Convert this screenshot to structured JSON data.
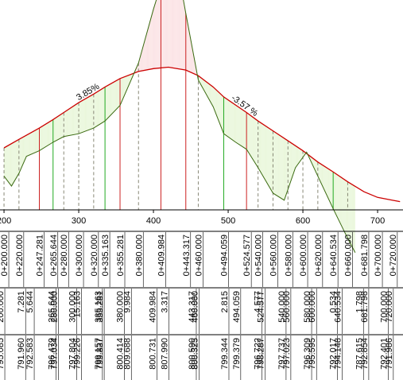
{
  "chart_data": {
    "type": "area",
    "title": "",
    "xlabel": "",
    "ylabel": "",
    "x_ticks": [
      200,
      300,
      400,
      500,
      600,
      700
    ],
    "xlim": [
      200,
      730
    ],
    "ground_profile": [
      [
        200,
        797.0
      ],
      [
        210,
        796.3
      ],
      [
        220,
        797.2
      ],
      [
        230,
        798.4
      ],
      [
        247.281,
        798.8
      ],
      [
        265.644,
        799.4
      ],
      [
        280,
        799.8
      ],
      [
        300,
        800.0
      ],
      [
        320,
        800.4
      ],
      [
        335.163,
        800.9
      ],
      [
        355.281,
        802.0
      ],
      [
        380,
        805.0
      ],
      [
        400,
        808.8
      ],
      [
        409.984,
        810.5
      ],
      [
        420,
        812.5
      ],
      [
        430,
        812.4
      ],
      [
        443.317,
        808.5
      ],
      [
        460,
        803.8
      ],
      [
        480,
        801.9
      ],
      [
        494.059,
        800.0
      ],
      [
        510,
        799.4
      ],
      [
        524.577,
        798.9
      ],
      [
        540,
        797.6
      ],
      [
        560,
        795.8
      ],
      [
        575,
        795.3
      ],
      [
        590,
        797.6
      ],
      [
        605,
        798.7
      ],
      [
        620,
        797.0
      ],
      [
        640.534,
        794.7
      ],
      [
        660,
        792.6
      ],
      [
        670,
        791.6
      ]
    ],
    "design_profile": [
      [
        200,
        799.0
      ],
      [
        220,
        799.6
      ],
      [
        247.281,
        800.4
      ],
      [
        265.644,
        801.0
      ],
      [
        280,
        801.5
      ],
      [
        300,
        802.2
      ],
      [
        320,
        802.8
      ],
      [
        335.163,
        803.3
      ],
      [
        355.281,
        803.9
      ],
      [
        380,
        804.4
      ],
      [
        400,
        804.6
      ],
      [
        420,
        804.7
      ],
      [
        443.317,
        804.5
      ],
      [
        460,
        804.1
      ],
      [
        480,
        803.3
      ],
      [
        494.059,
        802.6
      ],
      [
        524.577,
        801.5
      ],
      [
        540,
        800.9
      ],
      [
        560,
        800.2
      ],
      [
        580,
        799.5
      ],
      [
        600,
        798.8
      ],
      [
        620,
        798.0
      ],
      [
        640.534,
        797.3
      ],
      [
        660,
        796.6
      ],
      [
        681.798,
        795.9
      ],
      [
        700,
        795.5
      ],
      [
        720,
        795.3
      ],
      [
        730,
        795.2
      ]
    ],
    "grade_labels": [
      {
        "text": "3.85%",
        "x": 314
      },
      {
        "text": "-3.57 %",
        "x": 520
      }
    ],
    "green_stations": [
      265.644,
      335.163,
      494.059,
      640.534
    ],
    "red_stations": [
      247.281,
      355.281,
      409.984,
      443.317,
      524.577
    ],
    "colors": {
      "design_line": "#cc0000",
      "ground_line": "#3a6a10",
      "fill_cut": "#fbe4e6",
      "fill_fill": "#eaf7dc",
      "green_marker": "#22aa22",
      "red_marker": "#cc2222",
      "dashed_marker": "#888877",
      "grid_green": "#2a8a2a"
    }
  },
  "band": {
    "rows": [
      {
        "kind": "station",
        "values": [
          "0+200.000",
          "0+220.000",
          "0+247.281",
          "0+265.644",
          "0+280.000",
          "0+300.000",
          "0+320.000",
          "0+335.163",
          "0+355.281",
          "0+380.000",
          "0+409.984",
          "0+443.317",
          "0+460.000",
          "0+494.059",
          "0+524.577",
          "0+540.000",
          "0+560.000",
          "0+580.000",
          "0+600.000",
          "0+620.000",
          "0+640.534",
          "0+660.000",
          "0+681.798",
          "0+700.000",
          "0+720.000"
        ]
      },
      {
        "kind": "interval",
        "values": [
          "200.000",
          "7.281",
          "5.644",
          "265.644",
          "280.000",
          "300.000",
          "15.163",
          "335.163",
          "355.281",
          "380.000",
          "9.984",
          "409.984",
          "3.317",
          "443.317",
          "460.000",
          "2.815",
          "494.059",
          "4.577",
          "524.577",
          "540.000",
          "560.000",
          "580.000",
          "600.000",
          "0.534",
          "640.534",
          "1.798",
          "681.798",
          "700.000",
          "720.000"
        ]
      },
      {
        "kind": "elevation",
        "values": [
          "795.085",
          "791.960",
          "792.583",
          "796.479",
          "797.034",
          "797.804",
          "799.226",
          "799.157",
          "799.837",
          "800.414",
          "809.688",
          "800.731",
          "807.990",
          "800.590",
          "800.325",
          "799.344",
          "799.379",
          "796.722",
          "798.287",
          "797.737",
          "797.023",
          "796.309",
          "795.595",
          "792.017",
          "794.148",
          "787.615",
          "792.854",
          "792.401",
          "791.986"
        ]
      }
    ]
  }
}
